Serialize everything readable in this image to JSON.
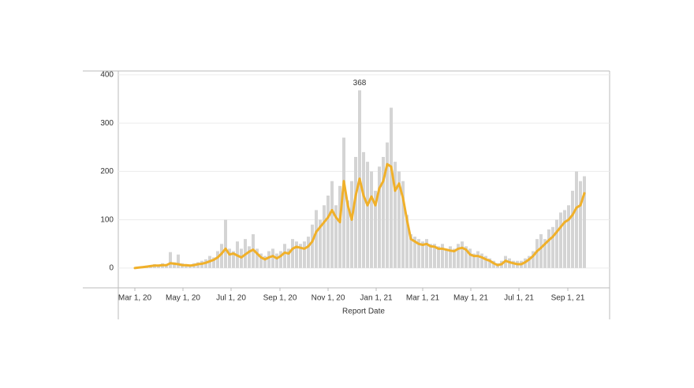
{
  "chart_data": {
    "type": "bar-line",
    "x_label": "Report Date",
    "x": [
      "2020-03-01",
      "2020-03-06",
      "2020-03-11",
      "2020-03-16",
      "2020-03-21",
      "2020-03-26",
      "2020-03-31",
      "2020-04-05",
      "2020-04-10",
      "2020-04-15",
      "2020-04-20",
      "2020-04-25",
      "2020-04-30",
      "2020-05-05",
      "2020-05-10",
      "2020-05-15",
      "2020-05-20",
      "2020-05-25",
      "2020-05-30",
      "2020-06-04",
      "2020-06-09",
      "2020-06-14",
      "2020-06-19",
      "2020-06-24",
      "2020-06-29",
      "2020-07-04",
      "2020-07-09",
      "2020-07-14",
      "2020-07-19",
      "2020-07-24",
      "2020-07-29",
      "2020-08-03",
      "2020-08-08",
      "2020-08-13",
      "2020-08-18",
      "2020-08-23",
      "2020-08-28",
      "2020-09-02",
      "2020-09-07",
      "2020-09-12",
      "2020-09-17",
      "2020-09-22",
      "2020-09-27",
      "2020-10-02",
      "2020-10-07",
      "2020-10-12",
      "2020-10-17",
      "2020-10-22",
      "2020-10-27",
      "2020-11-01",
      "2020-11-06",
      "2020-11-11",
      "2020-11-16",
      "2020-11-21",
      "2020-11-26",
      "2020-12-01",
      "2020-12-06",
      "2020-12-11",
      "2020-12-16",
      "2020-12-21",
      "2020-12-26",
      "2020-12-31",
      "2021-01-05",
      "2021-01-10",
      "2021-01-15",
      "2021-01-20",
      "2021-01-25",
      "2021-01-30",
      "2021-02-04",
      "2021-02-09",
      "2021-02-14",
      "2021-02-19",
      "2021-02-24",
      "2021-03-01",
      "2021-03-06",
      "2021-03-11",
      "2021-03-16",
      "2021-03-21",
      "2021-03-26",
      "2021-03-31",
      "2021-04-05",
      "2021-04-10",
      "2021-04-15",
      "2021-04-20",
      "2021-04-25",
      "2021-04-30",
      "2021-05-05",
      "2021-05-10",
      "2021-05-15",
      "2021-05-20",
      "2021-05-25",
      "2021-05-30",
      "2021-06-04",
      "2021-06-09",
      "2021-06-14",
      "2021-06-19",
      "2021-06-24",
      "2021-06-29",
      "2021-07-04",
      "2021-07-09",
      "2021-07-14",
      "2021-07-19",
      "2021-07-24",
      "2021-07-29",
      "2021-08-03",
      "2021-08-08",
      "2021-08-13",
      "2021-08-18",
      "2021-08-23",
      "2021-08-28",
      "2021-09-02",
      "2021-09-07",
      "2021-09-12",
      "2021-09-17",
      "2021-09-22"
    ],
    "series": [
      {
        "color": "#d4d4d4",
        "values": [
          0,
          2,
          3,
          5,
          4,
          8,
          6,
          10,
          8,
          33,
          12,
          28,
          10,
          8,
          6,
          10,
          12,
          15,
          18,
          25,
          22,
          35,
          50,
          100,
          40,
          35,
          55,
          40,
          60,
          45,
          70,
          40,
          30,
          25,
          35,
          40,
          30,
          35,
          50,
          40,
          60,
          55,
          50,
          55,
          65,
          90,
          120,
          100,
          130,
          150,
          180,
          130,
          170,
          270,
          140,
          180,
          230,
          368,
          240,
          220,
          200,
          160,
          210,
          230,
          260,
          332,
          220,
          200,
          180,
          110,
          70,
          65,
          60,
          55,
          60,
          50,
          50,
          45,
          50,
          40,
          45,
          40,
          50,
          55,
          45,
          40,
          30,
          35,
          30,
          25,
          20,
          15,
          10,
          15,
          25,
          20,
          15,
          15,
          15,
          20,
          25,
          35,
          60,
          70,
          60,
          80,
          85,
          100,
          115,
          120,
          130,
          160,
          200,
          180,
          190
        ]
      },
      {
        "color": "#f0b02a",
        "values": [
          0,
          1,
          2,
          3,
          4,
          5,
          5,
          6,
          6,
          10,
          9,
          8,
          6,
          6,
          5,
          6,
          8,
          9,
          11,
          14,
          17,
          22,
          30,
          40,
          28,
          30,
          26,
          22,
          28,
          34,
          38,
          30,
          22,
          18,
          22,
          25,
          20,
          25,
          32,
          30,
          40,
          44,
          42,
          40,
          45,
          55,
          75,
          85,
          95,
          105,
          120,
          105,
          95,
          180,
          130,
          100,
          150,
          185,
          150,
          130,
          148,
          130,
          165,
          180,
          215,
          210,
          160,
          175,
          145,
          100,
          60,
          55,
          50,
          48,
          50,
          45,
          44,
          40,
          40,
          38,
          36,
          35,
          40,
          42,
          38,
          28,
          25,
          25,
          22,
          18,
          15,
          10,
          6,
          8,
          15,
          12,
          10,
          8,
          8,
          12,
          18,
          25,
          35,
          42,
          50,
          58,
          65,
          75,
          85,
          95,
          100,
          110,
          125,
          130,
          155
        ]
      }
    ],
    "xlim": [
      "2020-02-09",
      "2021-10-24"
    ],
    "xticks": [
      {
        "value": "2020-03-01",
        "label": "Mar 1, 20"
      },
      {
        "value": "2020-05-01",
        "label": "May 1, 20"
      },
      {
        "value": "2020-07-01",
        "label": "Jul 1, 20"
      },
      {
        "value": "2020-09-01",
        "label": "Sep 1, 20"
      },
      {
        "value": "2020-11-01",
        "label": "Nov 1, 20"
      },
      {
        "value": "2021-01-01",
        "label": "Jan 1, 21"
      },
      {
        "value": "2021-03-01",
        "label": "Mar 1, 21"
      },
      {
        "value": "2021-05-01",
        "label": "May 1, 21"
      },
      {
        "value": "2021-07-01",
        "label": "Jul 1, 21"
      },
      {
        "value": "2021-09-01",
        "label": "Sep 1, 21"
      }
    ],
    "ylim": [
      -41,
      408
    ],
    "yticks": [
      0,
      100,
      200,
      300,
      400
    ],
    "grid": true
  }
}
